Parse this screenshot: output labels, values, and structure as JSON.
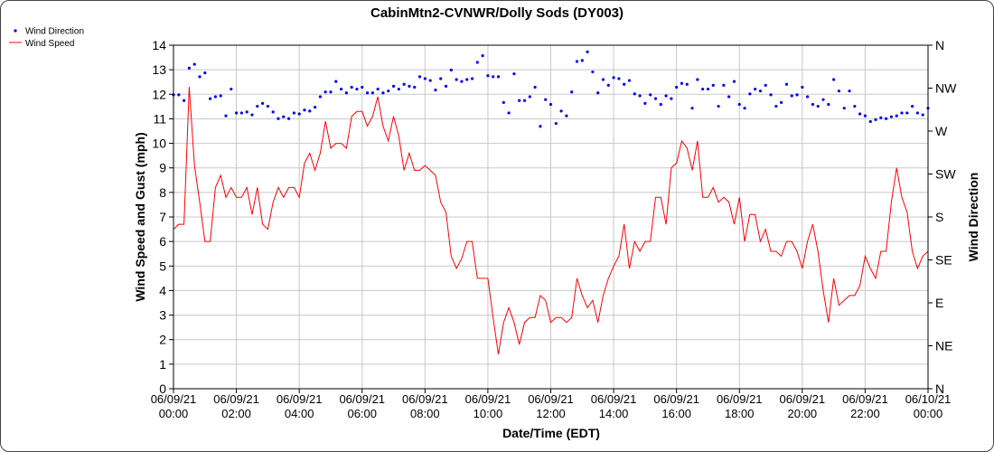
{
  "chart_data": {
    "type": "line",
    "title": "CabinMtn2-CVNWR/Dolly Sods (DY003)",
    "xlabel": "Date/Time (EDT)",
    "ylabel": "Wind Speed and Gust (mph)",
    "y2label": "Wind Direction",
    "interval_minutes": 10,
    "x_range_hours": [
      0,
      24
    ],
    "ylim": [
      0,
      14
    ],
    "y2lim": [
      0,
      360
    ],
    "grid": true,
    "legend_position": "top-left",
    "y_ticks": [
      "0",
      "1",
      "2",
      "3",
      "4",
      "5",
      "6",
      "7",
      "8",
      "9",
      "10",
      "11",
      "12",
      "13",
      "14"
    ],
    "y2_ticks": [
      "N",
      "NE",
      "E",
      "SE",
      "S",
      "SW",
      "W",
      "NW",
      "N"
    ],
    "x_ticks": [
      {
        "date": "06/09/21",
        "time": "00:00"
      },
      {
        "date": "06/09/21",
        "time": "02:00"
      },
      {
        "date": "06/09/21",
        "time": "04:00"
      },
      {
        "date": "06/09/21",
        "time": "06:00"
      },
      {
        "date": "06/09/21",
        "time": "08:00"
      },
      {
        "date": "06/09/21",
        "time": "10:00"
      },
      {
        "date": "06/09/21",
        "time": "12:00"
      },
      {
        "date": "06/09/21",
        "time": "14:00"
      },
      {
        "date": "06/09/21",
        "time": "16:00"
      },
      {
        "date": "06/09/21",
        "time": "18:00"
      },
      {
        "date": "06/09/21",
        "time": "20:00"
      },
      {
        "date": "06/09/21",
        "time": "22:00"
      },
      {
        "date": "06/10/21",
        "time": "00:00"
      }
    ],
    "series": [
      {
        "name": "Wind Direction",
        "axis": "right",
        "style": "points",
        "color": "#0000ff",
        "values": [
          308,
          308,
          302,
          336,
          340,
          327,
          331,
          304,
          306,
          307,
          286,
          314,
          289,
          289,
          290,
          287,
          296,
          299,
          296,
          290,
          283,
          285,
          283,
          289,
          288,
          292,
          291,
          295,
          306,
          311,
          311,
          322,
          314,
          310,
          316,
          314,
          316,
          310,
          310,
          314,
          310,
          312,
          317,
          314,
          319,
          317,
          316,
          327,
          325,
          323,
          313,
          325,
          317,
          334,
          324,
          322,
          324,
          325,
          342,
          349,
          328,
          327,
          327,
          300,
          289,
          330,
          302,
          302,
          306,
          316,
          275,
          303,
          298,
          278,
          291,
          286,
          311,
          343,
          344,
          353,
          332,
          310,
          324,
          318,
          326,
          325,
          319,
          323,
          309,
          307,
          299,
          308,
          304,
          298,
          307,
          304,
          316,
          320,
          319,
          294,
          324,
          314,
          314,
          318,
          296,
          318,
          306,
          322,
          298,
          294,
          309,
          314,
          312,
          318,
          308,
          296,
          300,
          319,
          307,
          308,
          316,
          306,
          298,
          296,
          303,
          298,
          324,
          312,
          294,
          312,
          296,
          288,
          286,
          280,
          282,
          284,
          283,
          285,
          286,
          289,
          289,
          296,
          289,
          287,
          294
        ]
      },
      {
        "name": "Wind Speed",
        "axis": "left",
        "style": "line",
        "color": "#ff0000",
        "values": [
          6.5,
          6.7,
          6.7,
          12.3,
          9.1,
          7.6,
          6.0,
          6.0,
          8.2,
          8.7,
          7.8,
          8.2,
          7.8,
          7.8,
          8.2,
          7.1,
          8.2,
          6.7,
          6.5,
          7.6,
          8.2,
          7.8,
          8.2,
          8.2,
          7.8,
          9.2,
          9.6,
          8.9,
          9.6,
          10.9,
          9.8,
          10.0,
          10.0,
          9.8,
          11.1,
          11.3,
          11.3,
          10.7,
          11.1,
          11.9,
          10.7,
          10.1,
          11.1,
          10.3,
          8.9,
          9.6,
          8.9,
          8.9,
          9.1,
          8.9,
          8.7,
          7.6,
          7.2,
          5.4,
          4.9,
          5.3,
          6.0,
          6.0,
          4.5,
          4.5,
          4.5,
          2.9,
          1.4,
          2.7,
          3.3,
          2.7,
          1.8,
          2.7,
          2.9,
          2.9,
          3.8,
          3.6,
          2.7,
          2.9,
          2.9,
          2.7,
          2.9,
          4.5,
          3.8,
          3.3,
          3.6,
          2.7,
          3.8,
          4.5,
          5.0,
          5.4,
          6.7,
          4.9,
          6.0,
          5.6,
          6.0,
          6.0,
          7.8,
          7.8,
          6.7,
          9.0,
          9.2,
          10.1,
          9.8,
          8.9,
          10.1,
          7.8,
          7.8,
          8.2,
          7.6,
          7.8,
          7.6,
          6.7,
          7.8,
          6.0,
          7.1,
          7.1,
          6.0,
          6.5,
          5.6,
          5.6,
          5.4,
          6.0,
          6.0,
          5.6,
          4.9,
          6.0,
          6.7,
          5.6,
          4.0,
          2.7,
          4.5,
          3.4,
          3.6,
          3.8,
          3.8,
          4.2,
          5.4,
          4.9,
          4.5,
          5.6,
          5.6,
          7.6,
          9.0,
          7.8,
          7.2,
          5.6,
          4.9,
          5.4,
          5.6
        ]
      }
    ]
  }
}
